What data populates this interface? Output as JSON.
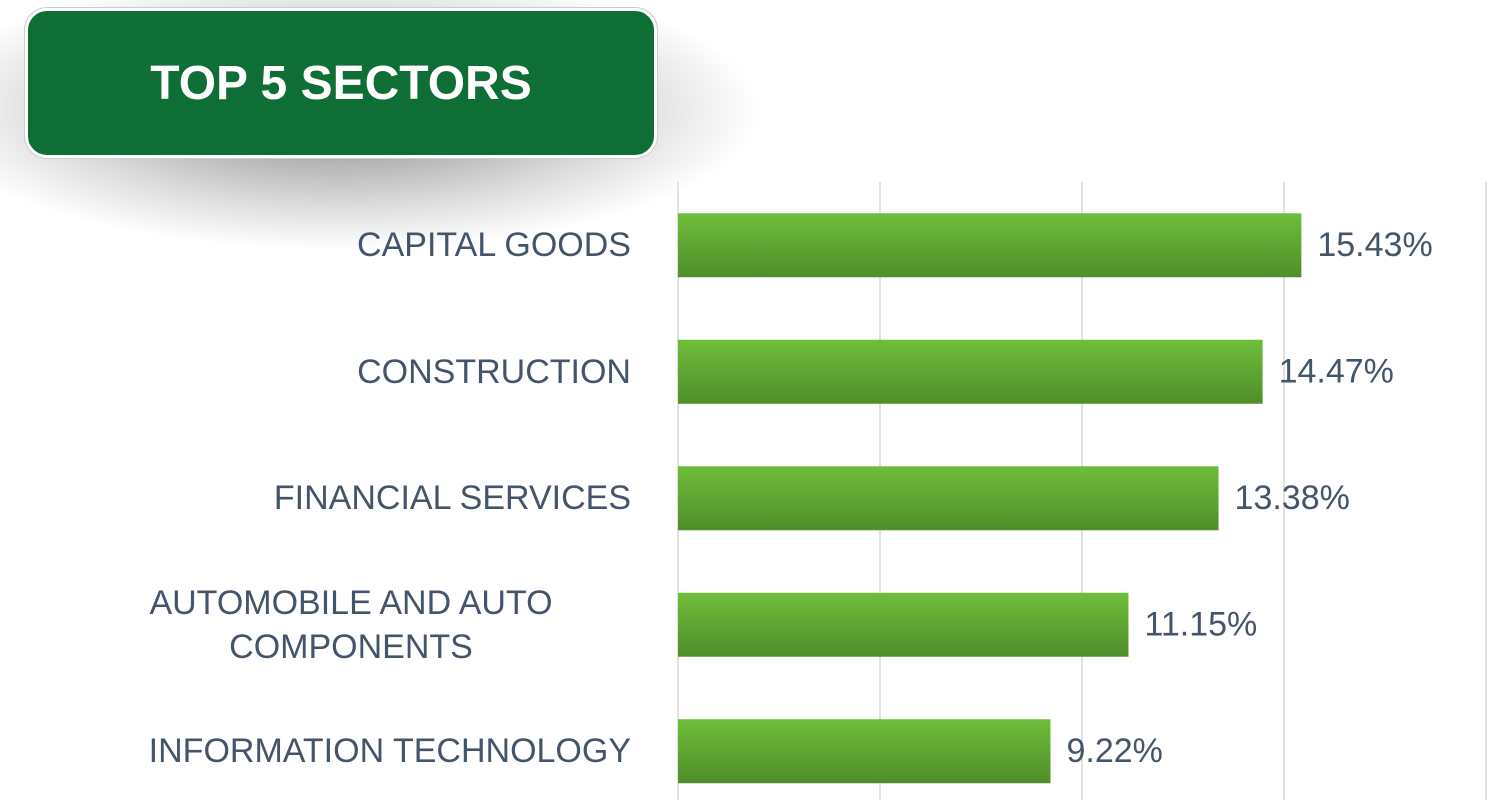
{
  "chart_data": {
    "type": "bar",
    "orientation": "horizontal",
    "title": "TOP 5 SECTORS",
    "categories": [
      "CAPITAL GOODS",
      "CONSTRUCTION",
      "FINANCIAL SERVICES",
      "AUTOMOBILE AND AUTO COMPONENTS",
      "INFORMATION TECHNOLOGY"
    ],
    "values": [
      15.43,
      14.47,
      13.38,
      11.15,
      9.22
    ],
    "value_labels": [
      "15.43%",
      "14.47%",
      "13.38%",
      "11.15%",
      "9.22%"
    ],
    "color": "#5fa832",
    "xlim": [
      0,
      20
    ],
    "xticks": [
      0,
      5,
      10,
      15,
      20
    ],
    "grid": true
  }
}
